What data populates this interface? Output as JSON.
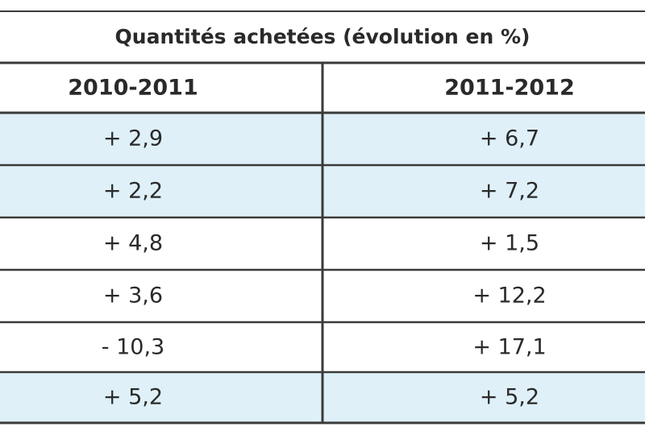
{
  "table": {
    "title": "Quantités achetées (évolution en %)",
    "header": [
      "2010-2011",
      "2011-2012"
    ],
    "rows": [
      [
        "+ 2,9",
        "+ 6,7"
      ],
      [
        "+ 2,2",
        "+ 7,2"
      ],
      [
        "+ 4,8",
        "+ 1,5"
      ],
      [
        "+ 3,6",
        "+ 12,2"
      ],
      [
        "- 10,3",
        "+ 17,1"
      ],
      [
        "+ 5,2",
        "+ 5,2"
      ]
    ]
  }
}
